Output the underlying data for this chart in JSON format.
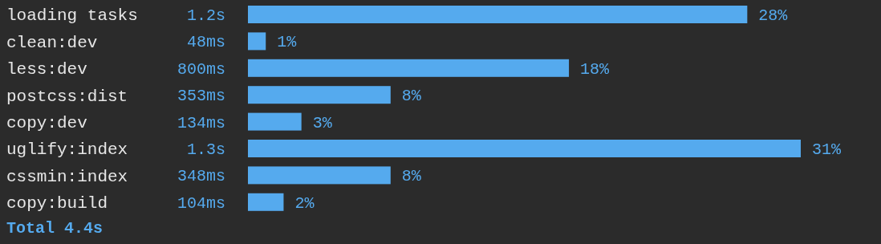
{
  "chart_data": {
    "type": "bar",
    "orientation": "horizontal",
    "categories": [
      "loading tasks",
      "clean:dev",
      "less:dev",
      "postcss:dist",
      "copy:dev",
      "uglify:index",
      "cssmin:index",
      "copy:build"
    ],
    "values": [
      28,
      1,
      18,
      8,
      3,
      31,
      8,
      2
    ],
    "value_labels": [
      "28%",
      "1%",
      "18%",
      "8%",
      "3%",
      "31%",
      "8%",
      "2%"
    ],
    "color": "#55aaee",
    "annotations": [
      "1.2s",
      "48ms",
      "800ms",
      "353ms",
      "134ms",
      "1.3s",
      "348ms",
      "104ms",
      "Total 4.4s"
    ]
  }
}
